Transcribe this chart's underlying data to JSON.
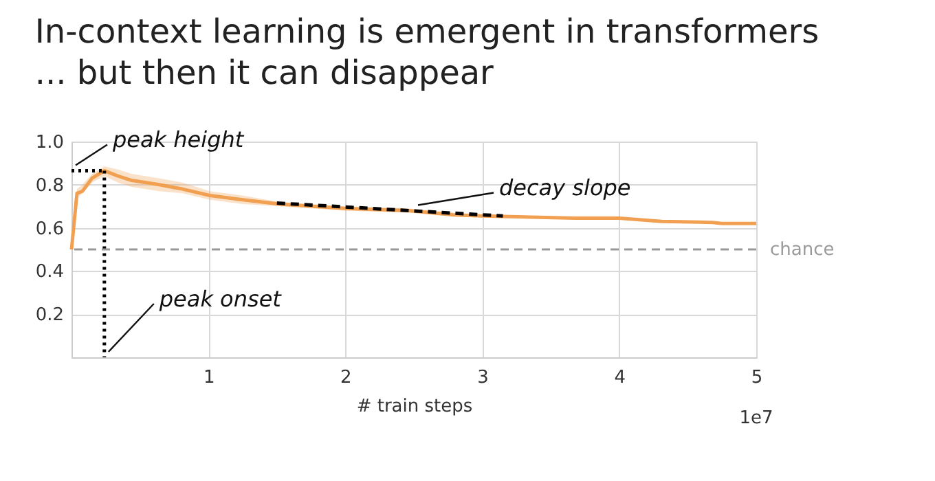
{
  "chart_data": {
    "type": "line",
    "title": "In-context learning is emergent in transformers",
    "subtitle": "... but then it can disappear",
    "xlabel": "# train steps",
    "xlim": [
      0,
      5
    ],
    "xticks": [
      1,
      2,
      3,
      4,
      5
    ],
    "ylim": [
      0,
      1.0
    ],
    "yticks": [
      0.2,
      0.4,
      0.6,
      0.8,
      {
        "value": 1.0,
        "label": "1.0"
      }
    ],
    "grid": true,
    "marker": "none",
    "series": [
      {
        "color": "#f0a050",
        "line_style": "solid",
        "x": [
          0,
          0.04,
          0.08,
          0.15,
          0.24,
          0.34,
          0.44,
          0.64,
          0.81,
          1.01,
          1.25,
          1.52,
          1.99,
          2.46,
          2.79,
          3.0,
          3.68,
          4.0,
          4.31,
          4.68,
          4.75,
          5.0
        ],
        "values": [
          0.5,
          0.76,
          0.77,
          0.83,
          0.865,
          0.84,
          0.82,
          0.8,
          0.78,
          0.75,
          0.73,
          0.71,
          0.69,
          0.68,
          0.66,
          0.655,
          0.645,
          0.645,
          0.63,
          0.625,
          0.62,
          0.62
        ],
        "lower": [
          0.49,
          0.74,
          0.76,
          0.81,
          0.84,
          0.81,
          0.79,
          0.77,
          0.76,
          0.73,
          0.71,
          0.7,
          0.68,
          0.67,
          0.655,
          0.65,
          0.64,
          0.64,
          0.625,
          0.62,
          0.615,
          0.615
        ],
        "upper": [
          0.51,
          0.78,
          0.8,
          0.85,
          0.885,
          0.87,
          0.85,
          0.83,
          0.81,
          0.77,
          0.75,
          0.72,
          0.7,
          0.69,
          0.67,
          0.66,
          0.65,
          0.65,
          0.635,
          0.63,
          0.625,
          0.625
        ]
      },
      {
        "type": "line",
        "color": "#000000",
        "line_style": "dashed",
        "x": [
          1.5,
          3.15
        ],
        "values": [
          0.715,
          0.655
        ]
      },
      {
        "type": "line",
        "color": "#000000",
        "line_style": "dotted",
        "x": [
          0,
          0.24
        ],
        "values": [
          0.865,
          0.865
        ]
      },
      {
        "type": "line",
        "color": "#000000",
        "line_style": "dotted",
        "x": [
          0.24,
          0.24
        ],
        "values": [
          0.865,
          0
        ]
      }
    ],
    "ref_lines": [
      {
        "axis": "y",
        "value": 0.5,
        "label": "chance",
        "color": "#999999",
        "line_style": "dashed"
      }
    ],
    "annotations": [
      {
        "text": "peak height",
        "x": 0,
        "y": 0.865
      },
      {
        "text": "peak onset",
        "x": 0.24,
        "y": 0
      },
      {
        "text": "decay slope",
        "x": 2.5,
        "y": 0.68
      },
      "1e7"
    ]
  }
}
